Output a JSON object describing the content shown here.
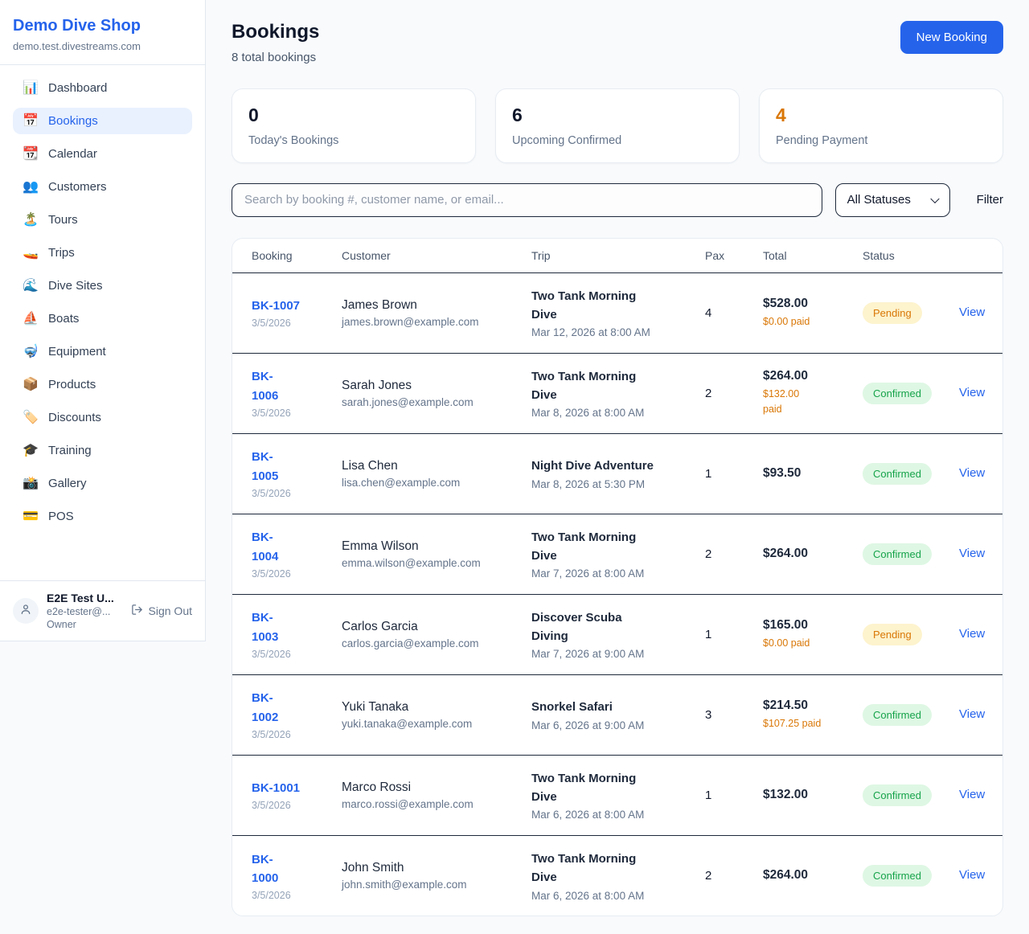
{
  "sidebar": {
    "shop_name": "Demo Dive Shop",
    "domain": "demo.test.divestreams.com",
    "items": [
      {
        "icon": "📊",
        "label": "Dashboard",
        "active": false
      },
      {
        "icon": "📅",
        "label": "Bookings",
        "active": true
      },
      {
        "icon": "📆",
        "label": "Calendar",
        "active": false
      },
      {
        "icon": "👥",
        "label": "Customers",
        "active": false
      },
      {
        "icon": "🏝️",
        "label": "Tours",
        "active": false
      },
      {
        "icon": "🚤",
        "label": "Trips",
        "active": false
      },
      {
        "icon": "🌊",
        "label": "Dive Sites",
        "active": false
      },
      {
        "icon": "⛵",
        "label": "Boats",
        "active": false
      },
      {
        "icon": "🤿",
        "label": "Equipment",
        "active": false
      },
      {
        "icon": "📦",
        "label": "Products",
        "active": false
      },
      {
        "icon": "🏷️",
        "label": "Discounts",
        "active": false
      },
      {
        "icon": "🎓",
        "label": "Training",
        "active": false
      },
      {
        "icon": "📸",
        "label": "Gallery",
        "active": false
      },
      {
        "icon": "💳",
        "label": "POS",
        "active": false
      }
    ],
    "user": {
      "name": "E2E Test U...",
      "email": "e2e-tester@...",
      "role": "Owner",
      "sign_out_label": "Sign Out"
    }
  },
  "header": {
    "title": "Bookings",
    "subtitle": "8 total bookings",
    "new_booking_label": "New Booking"
  },
  "stats": [
    {
      "value": "0",
      "label": "Today's Bookings"
    },
    {
      "value": "6",
      "label": "Upcoming Confirmed"
    },
    {
      "value": "4",
      "label": "Pending Payment"
    }
  ],
  "filters": {
    "search_placeholder": "Search by booking #, customer name, or email...",
    "status_select_value": "All Statuses",
    "filter_label": "Filter"
  },
  "table": {
    "headers": [
      "Booking",
      "Customer",
      "Trip",
      "Pax",
      "Total",
      "Status"
    ],
    "rows": [
      {
        "id": "BK-1007",
        "date": "3/5/2026",
        "customer": "James Brown",
        "email": "james.brown@example.com",
        "trip": "Two Tank Morning\nDive",
        "datetime": "Mar 12, 2026 at 8:00 AM",
        "pax": "4",
        "total": "$528.00",
        "paid": "$0.00 paid",
        "status": "Pending",
        "view": "View"
      },
      {
        "id": "BK-\n1006",
        "date": "3/5/2026",
        "customer": "Sarah Jones",
        "email": "sarah.jones@example.com",
        "trip": "Two Tank Morning\nDive",
        "datetime": "Mar 8, 2026 at 8:00 AM",
        "pax": "2",
        "total": "$264.00",
        "paid": "$132.00\npaid",
        "status": "Confirmed",
        "view": "View"
      },
      {
        "id": "BK-\n1005",
        "date": "3/5/2026",
        "customer": "Lisa Chen",
        "email": "lisa.chen@example.com",
        "trip": "Night Dive Adventure",
        "datetime": "Mar 8, 2026 at 5:30 PM",
        "pax": "1",
        "total": "$93.50",
        "paid": "",
        "status": "Confirmed",
        "view": "View"
      },
      {
        "id": "BK-\n1004",
        "date": "3/5/2026",
        "customer": "Emma Wilson",
        "email": "emma.wilson@example.com",
        "trip": "Two Tank Morning\nDive",
        "datetime": "Mar 7, 2026 at 8:00 AM",
        "pax": "2",
        "total": "$264.00",
        "paid": "",
        "status": "Confirmed",
        "view": "View"
      },
      {
        "id": "BK-\n1003",
        "date": "3/5/2026",
        "customer": "Carlos Garcia",
        "email": "carlos.garcia@example.com",
        "trip": "Discover Scuba\nDiving",
        "datetime": "Mar 7, 2026 at 9:00 AM",
        "pax": "1",
        "total": "$165.00",
        "paid": "$0.00 paid",
        "status": "Pending",
        "view": "View"
      },
      {
        "id": "BK-\n1002",
        "date": "3/5/2026",
        "customer": "Yuki Tanaka",
        "email": "yuki.tanaka@example.com",
        "trip": "Snorkel Safari",
        "datetime": "Mar 6, 2026 at 9:00 AM",
        "pax": "3",
        "total": "$214.50",
        "paid": "$107.25 paid",
        "status": "Confirmed",
        "view": "View"
      },
      {
        "id": "BK-1001",
        "date": "3/5/2026",
        "customer": "Marco Rossi",
        "email": "marco.rossi@example.com",
        "trip": "Two Tank Morning\nDive",
        "datetime": "Mar 6, 2026 at 8:00 AM",
        "pax": "1",
        "total": "$132.00",
        "paid": "",
        "status": "Confirmed",
        "view": "View"
      },
      {
        "id": "BK-\n1000",
        "date": "3/5/2026",
        "customer": "John Smith",
        "email": "john.smith@example.com",
        "trip": "Two Tank Morning\nDive",
        "datetime": "Mar 6, 2026 at 8:00 AM",
        "pax": "2",
        "total": "$264.00",
        "paid": "",
        "status": "Confirmed",
        "view": "View"
      }
    ]
  },
  "colors": {
    "primary_blue": "#2563eb",
    "active_nav_bg": "#e9f1fe",
    "pending_text": "#d97706",
    "pending_bg": "#fdf3cd",
    "confirmed_text": "#16a34a",
    "confirmed_bg": "#def7e4",
    "page_bg": "#f8fafc",
    "dark_border": "#1e293b"
  }
}
